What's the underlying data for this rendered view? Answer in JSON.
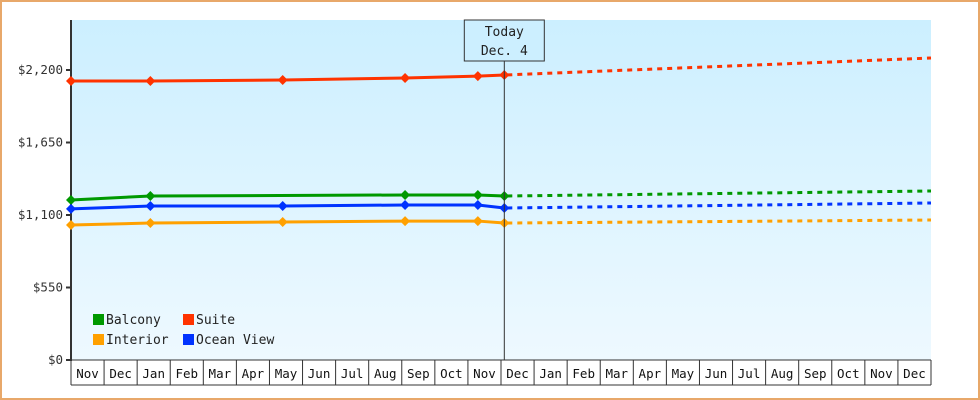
{
  "chart_data": {
    "type": "line",
    "title": "",
    "xlabel": "",
    "ylabel": "",
    "ylim": [
      0,
      2530
    ],
    "y_ticks": [
      {
        "value": 0,
        "label": "$0"
      },
      {
        "value": 550,
        "label": "$550"
      },
      {
        "value": 1100,
        "label": "$1,100"
      },
      {
        "value": 1650,
        "label": "$1,650"
      },
      {
        "value": 2200,
        "label": "$2,200"
      }
    ],
    "months": [
      "Nov",
      "Dec",
      "Jan",
      "Feb",
      "Mar",
      "Apr",
      "May",
      "Jun",
      "Jul",
      "Aug",
      "Sep",
      "Oct",
      "Nov",
      "Dec",
      "Jan",
      "Feb",
      "Mar",
      "Apr",
      "May",
      "Jun",
      "Jul",
      "Aug",
      "Sep",
      "Oct",
      "Nov",
      "Dec"
    ],
    "today_marker": {
      "line1": "Today",
      "line2": "Dec. 4",
      "month_index": 13.1
    },
    "legend": [
      {
        "name": "Balcony",
        "color": "#009900"
      },
      {
        "name": "Suite",
        "color": "#ff3300"
      },
      {
        "name": "Interior",
        "color": "#ffa000"
      },
      {
        "name": "Ocean View",
        "color": "#0033ff"
      }
    ],
    "series": [
      {
        "name": "Suite",
        "color": "#ff3300",
        "history": [
          [
            0,
            2117
          ],
          [
            2.4,
            2117
          ],
          [
            6.4,
            2124
          ],
          [
            10.1,
            2139
          ],
          [
            12.3,
            2154
          ],
          [
            13.1,
            2162
          ]
        ],
        "forecast": [
          [
            13.1,
            2162
          ],
          [
            26,
            2291
          ]
        ]
      },
      {
        "name": "Balcony",
        "color": "#009900",
        "history": [
          [
            0,
            1214
          ],
          [
            2.4,
            1244
          ],
          [
            10.1,
            1252
          ],
          [
            12.3,
            1252
          ],
          [
            13.1,
            1244
          ]
        ],
        "forecast": [
          [
            13.1,
            1244
          ],
          [
            26,
            1282
          ]
        ]
      },
      {
        "name": "Ocean View",
        "color": "#0033ff",
        "history": [
          [
            0,
            1146
          ],
          [
            2.4,
            1168
          ],
          [
            6.4,
            1168
          ],
          [
            10.1,
            1176
          ],
          [
            12.3,
            1176
          ],
          [
            13.1,
            1153
          ]
        ],
        "forecast": [
          [
            13.1,
            1153
          ],
          [
            26,
            1191
          ]
        ]
      },
      {
        "name": "Interior",
        "color": "#ffa000",
        "history": [
          [
            0,
            1024
          ],
          [
            2.4,
            1039
          ],
          [
            6.4,
            1047
          ],
          [
            10.1,
            1054
          ],
          [
            12.3,
            1054
          ],
          [
            13.1,
            1039
          ]
        ],
        "forecast": [
          [
            13.1,
            1039
          ],
          [
            26,
            1062
          ]
        ]
      }
    ],
    "grid": false,
    "legend_position": "lower-left inside"
  }
}
